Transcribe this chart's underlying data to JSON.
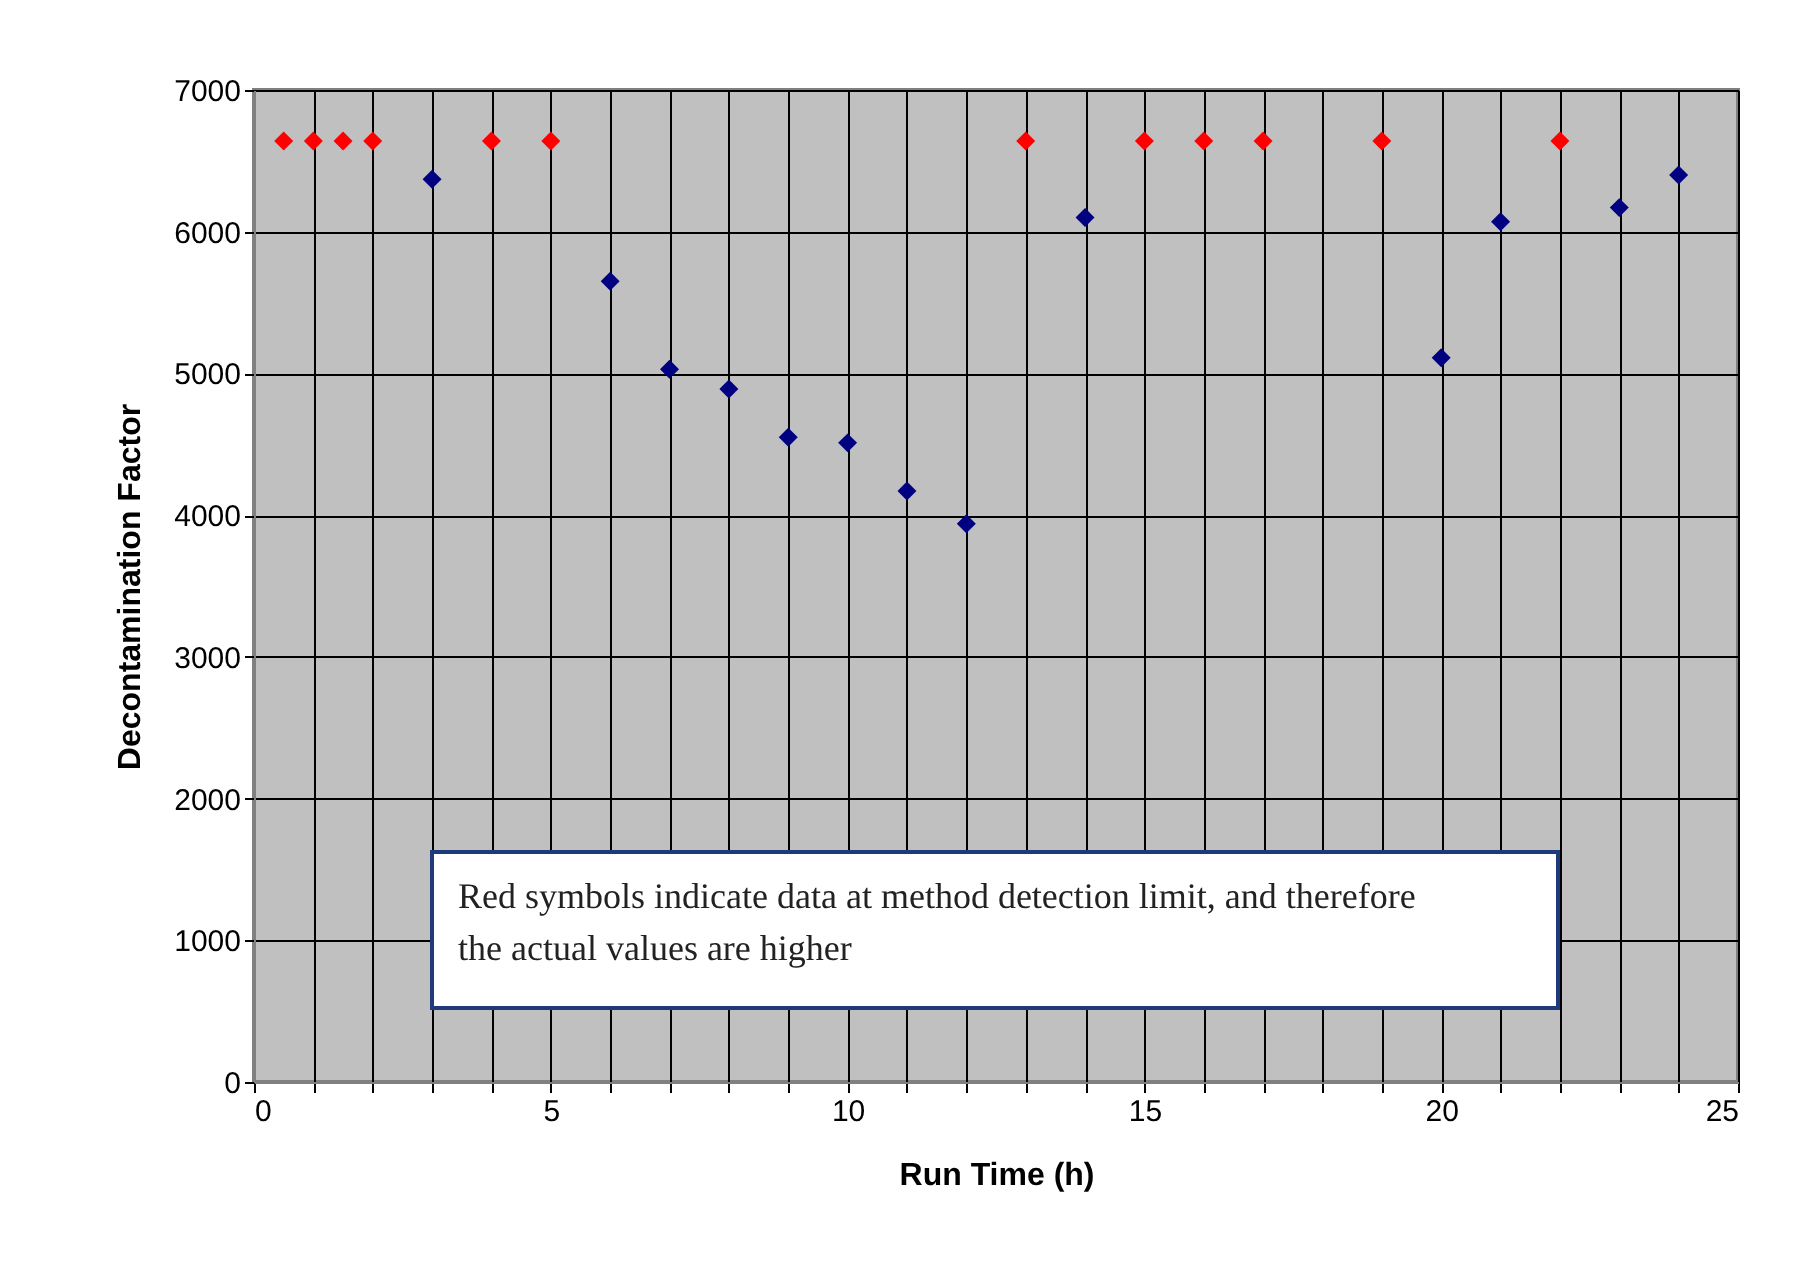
{
  "chart_data": {
    "type": "scatter",
    "xlabel": "Run Time (h)",
    "ylabel": "Decontamination Factor",
    "annotations": [
      "Red symbols indicate data at method detection limit, and therefore the actual values are higher"
    ],
    "series": [
      {
        "color": "#000080",
        "x": [
          3,
          6,
          7,
          8,
          9,
          10,
          11,
          12,
          14,
          20,
          21,
          23,
          24
        ],
        "values": [
          6370,
          5650,
          5030,
          4890,
          4550,
          4510,
          4170,
          3940,
          6100,
          5110,
          6070,
          6170,
          6400
        ]
      },
      {
        "color": "#ff0000",
        "x": [
          0.5,
          1,
          1.5,
          2,
          4,
          5,
          13,
          15,
          16,
          17,
          19,
          22
        ],
        "values": [
          6640,
          6640,
          6640,
          6640,
          6640,
          6640,
          6640,
          6640,
          6640,
          6640,
          6640,
          6640
        ]
      }
    ],
    "xlim": [
      0,
      25
    ],
    "xticks": [
      0,
      {
        "value": 1,
        "label": null
      },
      {
        "value": 2,
        "label": null
      },
      {
        "value": 3,
        "label": null
      },
      {
        "value": 4,
        "label": null
      },
      5,
      {
        "value": 6,
        "label": null
      },
      {
        "value": 7,
        "label": null
      },
      {
        "value": 8,
        "label": null
      },
      {
        "value": 9,
        "label": null
      },
      10,
      {
        "value": 11,
        "label": null
      },
      {
        "value": 12,
        "label": null
      },
      {
        "value": 13,
        "label": null
      },
      {
        "value": 14,
        "label": null
      },
      15,
      {
        "value": 16,
        "label": null
      },
      {
        "value": 17,
        "label": null
      },
      {
        "value": 18,
        "label": null
      },
      {
        "value": 19,
        "label": null
      },
      20,
      {
        "value": 21,
        "label": null
      },
      {
        "value": 22,
        "label": null
      },
      {
        "value": 23,
        "label": null
      },
      {
        "value": 24,
        "label": null
      },
      25
    ],
    "ylim": [
      0,
      7000
    ],
    "yticks": [
      0,
      1000,
      2000,
      3000,
      4000,
      5000,
      6000,
      7000
    ],
    "grid": true,
    "legend": false,
    "marker": "diamond"
  }
}
